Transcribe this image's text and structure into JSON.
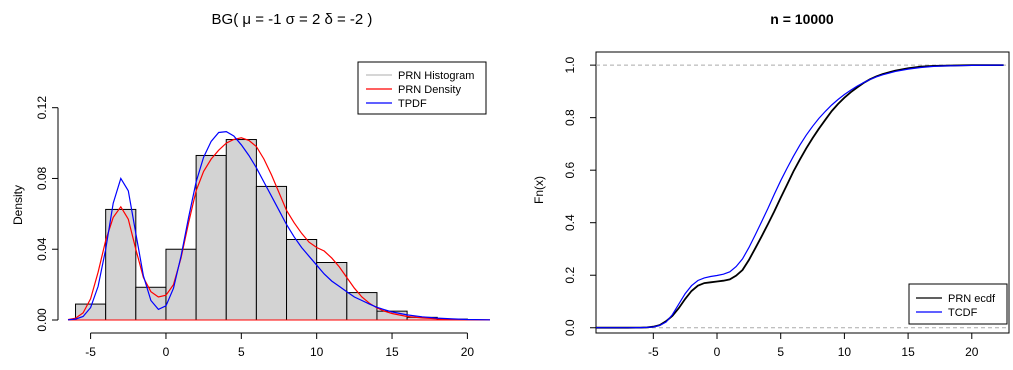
{
  "chart_data": [
    {
      "type": "histogram",
      "title": "BG( μ = -1 σ = 2 δ = -2 )",
      "xlabel": "",
      "ylabel": "Density",
      "xlim": [
        -6.5,
        21.5
      ],
      "ylim": [
        0,
        0.13
      ],
      "x_ticks": [
        -5,
        0,
        5,
        10,
        15,
        20
      ],
      "y_ticks": [
        0.0,
        0.04,
        0.08,
        0.12
      ],
      "y_tick_labels": [
        "0.00",
        "0.04",
        "0.08",
        "0.12"
      ],
      "bins": [
        {
          "x0": -6,
          "x1": -4,
          "density": 0.009
        },
        {
          "x0": -4,
          "x1": -2,
          "density": 0.0625
        },
        {
          "x0": -2,
          "x1": 0,
          "density": 0.0185
        },
        {
          "x0": 0,
          "x1": 2,
          "density": 0.04
        },
        {
          "x0": 2,
          "x1": 4,
          "density": 0.093
        },
        {
          "x0": 4,
          "x1": 6,
          "density": 0.102
        },
        {
          "x0": 6,
          "x1": 8,
          "density": 0.0755
        },
        {
          "x0": 8,
          "x1": 10,
          "density": 0.0455
        },
        {
          "x0": 10,
          "x1": 12,
          "density": 0.0325
        },
        {
          "x0": 12,
          "x1": 14,
          "density": 0.0155
        },
        {
          "x0": 14,
          "x1": 16,
          "density": 0.005
        },
        {
          "x0": 16,
          "x1": 18,
          "density": 0.0015
        },
        {
          "x0": 18,
          "x1": 20,
          "density": 0.0005
        }
      ],
      "series": [
        {
          "name": "PRN Density",
          "color": "#ff0000",
          "x": [
            -6.5,
            -6,
            -5.5,
            -5,
            -4.5,
            -4,
            -3.5,
            -3,
            -2.5,
            -2,
            -1.5,
            -1,
            -0.5,
            0,
            0.5,
            1,
            1.5,
            2,
            2.5,
            3,
            3.5,
            4,
            4.5,
            5,
            5.5,
            6,
            6.5,
            7,
            7.5,
            8,
            8.5,
            9,
            9.5,
            10,
            10.5,
            11,
            11.5,
            12,
            12.5,
            13,
            13.5,
            14,
            14.5,
            15,
            16,
            17,
            18,
            19,
            20,
            21.5
          ],
          "y": [
            0.0002,
            0.001,
            0.004,
            0.012,
            0.027,
            0.045,
            0.058,
            0.064,
            0.057,
            0.04,
            0.024,
            0.016,
            0.013,
            0.014,
            0.02,
            0.035,
            0.055,
            0.073,
            0.084,
            0.091,
            0.096,
            0.1,
            0.102,
            0.103,
            0.1015,
            0.098,
            0.091,
            0.082,
            0.072,
            0.062,
            0.055,
            0.049,
            0.044,
            0.041,
            0.039,
            0.035,
            0.03,
            0.024,
            0.018,
            0.013,
            0.0095,
            0.0068,
            0.005,
            0.0037,
            0.002,
            0.0012,
            0.0007,
            0.0004,
            0.0002,
            0.0001
          ]
        },
        {
          "name": "TPDF",
          "color": "#0000ff",
          "x": [
            -6.5,
            -6,
            -5.5,
            -5,
            -4.5,
            -4,
            -3.5,
            -3,
            -2.5,
            -2,
            -1.5,
            -1,
            -0.5,
            0,
            0.5,
            1,
            1.5,
            2,
            2.5,
            3,
            3.5,
            4,
            4.5,
            5,
            5.5,
            6,
            6.5,
            7,
            7.5,
            8,
            8.5,
            9,
            9.5,
            10,
            10.5,
            11,
            11.5,
            12,
            12.5,
            13,
            13.5,
            14,
            14.5,
            15,
            16,
            17,
            18,
            19,
            20,
            21.5
          ],
          "y": [
            0.0001,
            0.0005,
            0.002,
            0.007,
            0.019,
            0.04,
            0.066,
            0.08,
            0.073,
            0.049,
            0.025,
            0.011,
            0.006,
            0.008,
            0.018,
            0.036,
            0.058,
            0.078,
            0.092,
            0.101,
            0.106,
            0.1065,
            0.104,
            0.099,
            0.093,
            0.086,
            0.078,
            0.07,
            0.062,
            0.054,
            0.047,
            0.041,
            0.036,
            0.031,
            0.026,
            0.022,
            0.019,
            0.016,
            0.013,
            0.011,
            0.009,
            0.0072,
            0.0058,
            0.0046,
            0.0029,
            0.0018,
            0.0011,
            0.0006,
            0.0003,
            0.0001
          ]
        }
      ],
      "legend": {
        "position": "top-right",
        "entries": [
          {
            "label": "PRN Histogram",
            "color": "#bebebe"
          },
          {
            "label": "PRN Density",
            "color": "#ff0000"
          },
          {
            "label": "TPDF",
            "color": "#0000ff"
          }
        ]
      },
      "grid": false
    },
    {
      "type": "line",
      "title": "n = 10000",
      "xlabel": "",
      "ylabel": "Fn(x)",
      "xlim": [
        -9.5,
        23
      ],
      "ylim": [
        -0.02,
        1.05
      ],
      "x_ticks": [
        -5,
        0,
        5,
        10,
        15,
        20
      ],
      "y_ticks": [
        0.0,
        0.2,
        0.4,
        0.6,
        0.8,
        1.0
      ],
      "y_tick_labels": [
        "0.0",
        "0.2",
        "0.4",
        "0.6",
        "0.8",
        "1.0"
      ],
      "reference_lines": [
        0,
        1
      ],
      "series": [
        {
          "name": "PRN ecdf",
          "color": "#000000",
          "x": [
            -9.5,
            -7,
            -6,
            -5.5,
            -5,
            -4.5,
            -4,
            -3.5,
            -3,
            -2.5,
            -2,
            -1.5,
            -1,
            -0.5,
            0,
            0.5,
            1,
            1.5,
            2,
            2.5,
            3,
            3.5,
            4,
            4.5,
            5,
            5.5,
            6,
            6.5,
            7,
            7.5,
            8,
            8.5,
            9,
            9.5,
            10,
            10.5,
            11,
            11.5,
            12,
            12.5,
            13,
            14,
            15,
            16,
            17,
            18,
            19,
            20,
            22.5
          ],
          "y": [
            0,
            0,
            0.0005,
            0.0015,
            0.004,
            0.01,
            0.025,
            0.045,
            0.075,
            0.11,
            0.14,
            0.16,
            0.17,
            0.173,
            0.176,
            0.179,
            0.184,
            0.198,
            0.22,
            0.258,
            0.302,
            0.348,
            0.395,
            0.443,
            0.495,
            0.545,
            0.595,
            0.64,
            0.683,
            0.722,
            0.758,
            0.792,
            0.825,
            0.852,
            0.876,
            0.897,
            0.915,
            0.932,
            0.946,
            0.957,
            0.966,
            0.979,
            0.988,
            0.994,
            0.997,
            0.998,
            0.999,
            1.0,
            1.0
          ]
        },
        {
          "name": "TCDF",
          "color": "#0000ff",
          "x": [
            -9.5,
            -7,
            -6,
            -5.5,
            -5,
            -4.5,
            -4,
            -3.5,
            -3,
            -2.5,
            -2,
            -1.5,
            -1,
            -0.5,
            0,
            0.5,
            1,
            1.5,
            2,
            2.5,
            3,
            3.5,
            4,
            4.5,
            5,
            5.5,
            6,
            6.5,
            7,
            7.5,
            8,
            8.5,
            9,
            9.5,
            10,
            10.5,
            11,
            11.5,
            12,
            12.5,
            13,
            14,
            15,
            16,
            17,
            18,
            19,
            20,
            22.5
          ],
          "y": [
            0,
            0,
            0.0004,
            0.0012,
            0.003,
            0.009,
            0.022,
            0.05,
            0.09,
            0.13,
            0.16,
            0.18,
            0.19,
            0.195,
            0.199,
            0.204,
            0.213,
            0.233,
            0.262,
            0.305,
            0.353,
            0.404,
            0.455,
            0.508,
            0.56,
            0.608,
            0.653,
            0.695,
            0.733,
            0.767,
            0.797,
            0.824,
            0.848,
            0.869,
            0.888,
            0.905,
            0.92,
            0.933,
            0.945,
            0.955,
            0.963,
            0.976,
            0.985,
            0.991,
            0.995,
            0.997,
            0.998,
            0.999,
            1.0
          ]
        }
      ],
      "legend": {
        "position": "bottom-right",
        "entries": [
          {
            "label": "PRN ecdf",
            "color": "#000000"
          },
          {
            "label": "TCDF",
            "color": "#0000ff"
          }
        ]
      },
      "grid": false
    }
  ]
}
